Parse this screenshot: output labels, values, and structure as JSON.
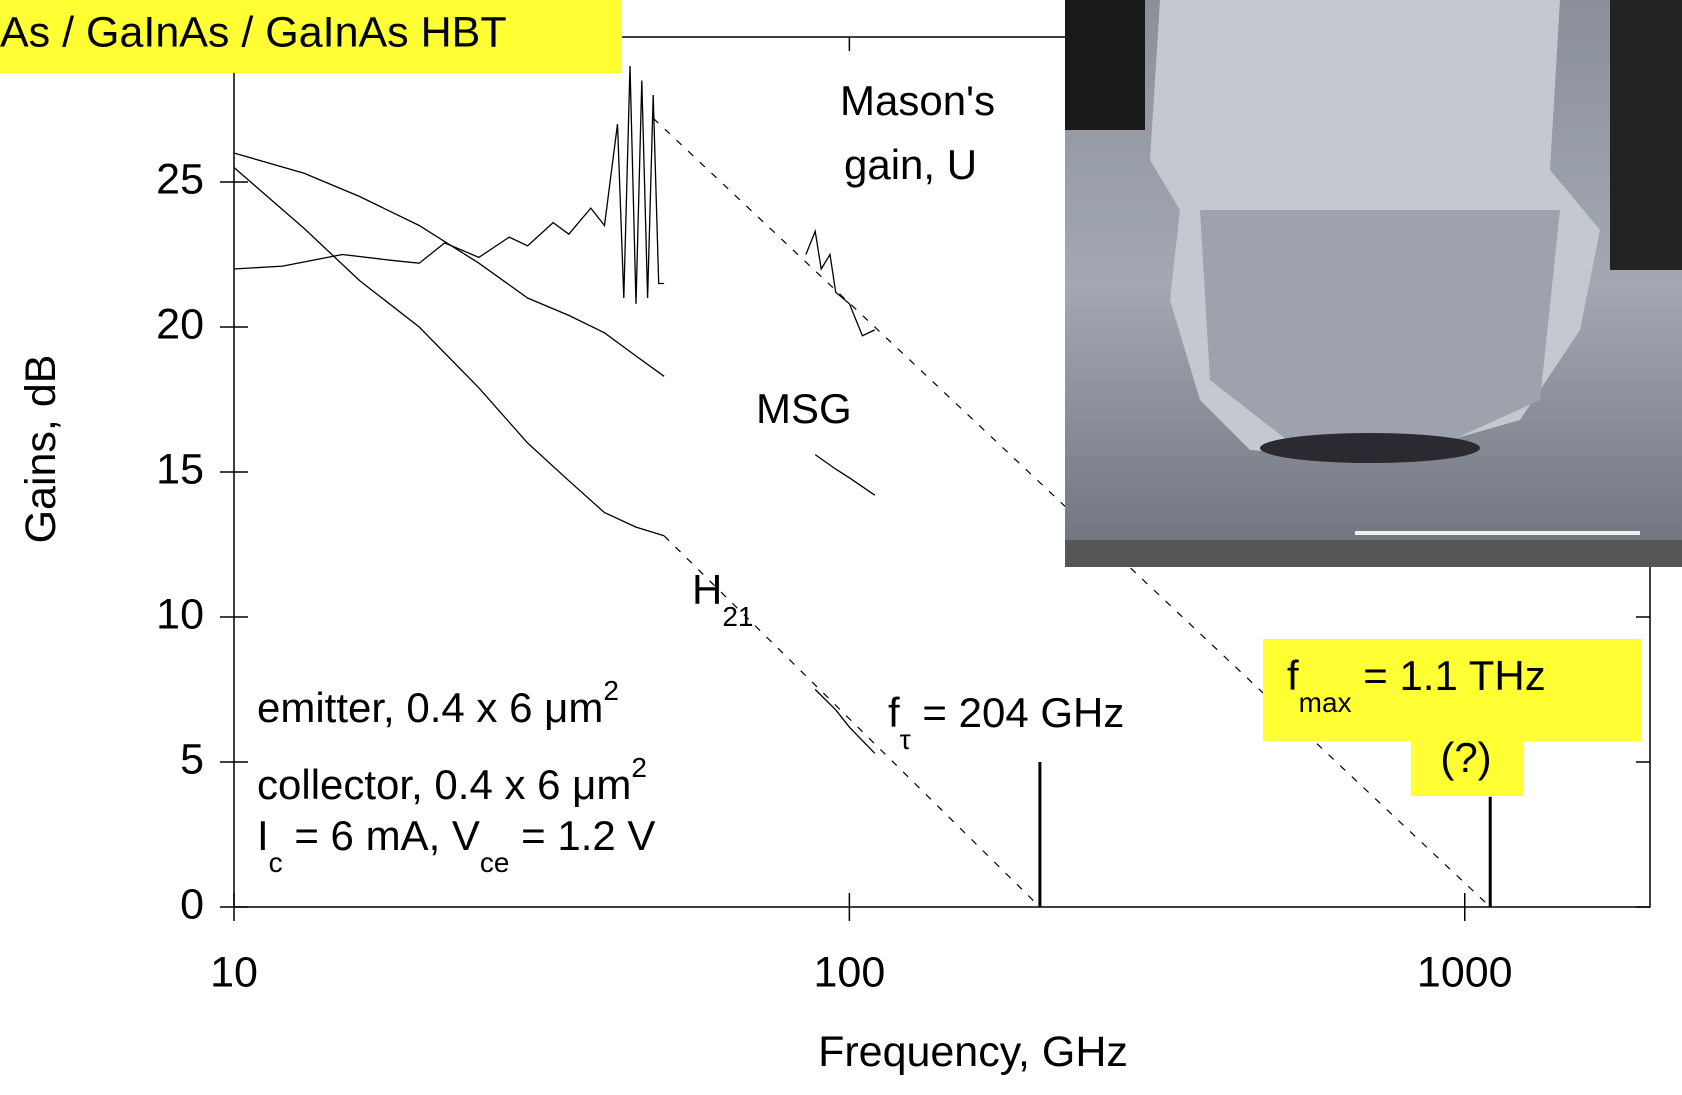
{
  "chart_data": {
    "type": "line",
    "title": "As / GaInAs / GaInAs HBT",
    "xlabel": "Frequency, GHz",
    "ylabel": "Gains, dB",
    "xscale": "log",
    "xlim": [
      10,
      2000
    ],
    "ylim": [
      0,
      30
    ],
    "xticks": [
      10,
      100,
      1000
    ],
    "yticks": [
      0,
      5,
      10,
      15,
      20,
      25
    ],
    "series": [
      {
        "color": "#000000",
        "dash": false,
        "x": [
          10,
          12,
          15,
          18,
          20,
          22,
          25,
          28,
          30,
          33,
          35,
          38,
          40,
          42,
          43,
          44,
          45,
          46,
          47,
          48,
          49,
          50,
          70,
          85,
          88,
          90,
          93,
          95,
          100,
          105,
          110
        ],
        "values": [
          22,
          22.1,
          22.5,
          22.3,
          22.2,
          22.9,
          22.4,
          23.1,
          22.8,
          23.6,
          23.2,
          24.1,
          23.5,
          27,
          21,
          29,
          20.8,
          28.5,
          21,
          28,
          21.5,
          21.5,
          null,
          22.5,
          23.3,
          22,
          22.5,
          21.2,
          20.8,
          19.7,
          19.9
        ]
      },
      {
        "color": "#000000",
        "dash": false,
        "x": [
          10,
          13,
          16,
          20,
          25,
          30,
          35,
          40,
          45,
          50,
          70,
          88,
          95,
          100,
          110
        ],
        "values": [
          26,
          25.3,
          24.5,
          23.5,
          22.2,
          21,
          20.4,
          19.8,
          19,
          18.3,
          null,
          15.6,
          15.1,
          14.8,
          14.2
        ]
      },
      {
        "color": "#000000",
        "dash": false,
        "x": [
          10,
          13,
          16,
          20,
          25,
          30,
          35,
          40,
          45,
          50,
          70,
          88,
          95,
          100,
          110
        ],
        "values": [
          25.5,
          23.4,
          21.6,
          20,
          17.9,
          16,
          14.7,
          13.6,
          13.1,
          12.8,
          null,
          7.5,
          6.8,
          6.2,
          5.3
        ]
      },
      {
        "color": "#000000",
        "dash": true,
        "x": [
          50,
          204
        ],
        "values": [
          12.8,
          0
        ]
      },
      {
        "color": "#000000",
        "dash": true,
        "x": [
          48,
          1100
        ],
        "values": [
          27.2,
          0
        ]
      }
    ],
    "markers": [
      {
        "x": 204,
        "y": [
          0,
          5
        ]
      },
      {
        "x": 1100,
        "y": [
          0,
          3.8
        ]
      }
    ],
    "annotations": [
      {
        "parts": [
          {
            "text": "Mason's"
          }
        ]
      },
      {
        "parts": [
          {
            "text": "gain, U"
          }
        ]
      },
      {
        "parts": [
          {
            "text": "MSG"
          }
        ]
      },
      {
        "parts": [
          {
            "text": "H"
          },
          {
            "text": "21",
            "sub": true
          }
        ]
      },
      {
        "parts": [
          {
            "text": "emitter, 0.4 x 6 μm"
          },
          {
            "text": "2",
            "sup": true
          }
        ]
      },
      {
        "parts": [
          {
            "text": "collector, 0.4 x 6 μm"
          },
          {
            "text": "2",
            "sup": true
          }
        ]
      },
      {
        "parts": [
          {
            "text": "I"
          },
          {
            "text": "c",
            "sub": true
          },
          {
            "text": " = 6 mA, V"
          },
          {
            "text": "ce",
            "sub": true
          },
          {
            "text": " = 1.2 V"
          }
        ]
      },
      {
        "parts": [
          {
            "text": "f"
          },
          {
            "text": "τ",
            "sub": true
          },
          {
            "text": " = 204 GHz"
          }
        ]
      },
      {
        "parts": [
          {
            "text": "f"
          },
          {
            "text": "max",
            "sub": true
          },
          {
            "text": " = 1.1 THz"
          }
        ],
        "highlight": "#ffff33"
      },
      {
        "parts": [
          {
            "text": "(?)"
          }
        ],
        "highlight": "#ffff33"
      }
    ]
  }
}
